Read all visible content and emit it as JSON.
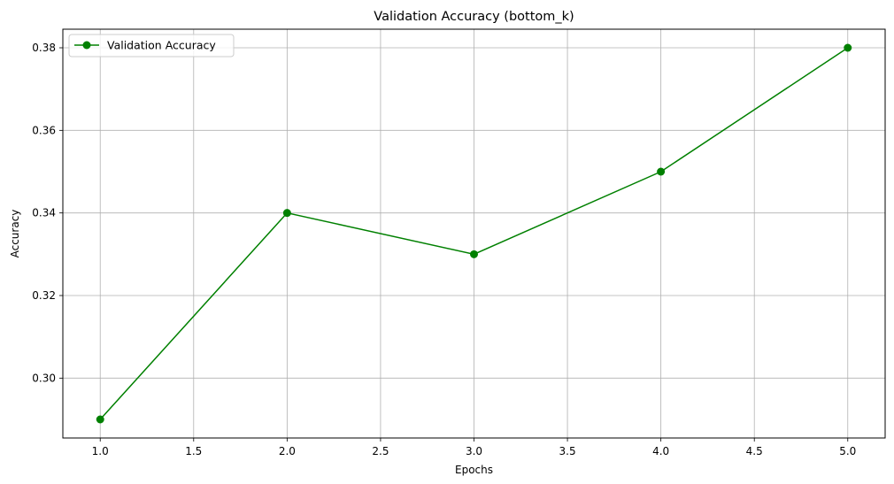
{
  "chart_data": {
    "type": "line",
    "title": "Validation Accuracy (bottom_k)",
    "xlabel": "Epochs",
    "ylabel": "Accuracy",
    "x": [
      1,
      2,
      3,
      4,
      5
    ],
    "series": [
      {
        "name": "Validation Accuracy",
        "values": [
          0.29,
          0.34,
          0.33,
          0.35,
          0.38
        ],
        "color": "#008000",
        "marker": "circle"
      }
    ],
    "xlim": [
      0.8,
      5.2
    ],
    "ylim": [
      0.2855,
      0.3845
    ],
    "xticks": [
      1.0,
      1.5,
      2.0,
      2.5,
      3.0,
      3.5,
      4.0,
      4.5,
      5.0
    ],
    "xtick_labels": [
      "1.0",
      "1.5",
      "2.0",
      "2.5",
      "3.0",
      "3.5",
      "4.0",
      "4.5",
      "5.0"
    ],
    "yticks": [
      0.3,
      0.32,
      0.34,
      0.36,
      0.38
    ],
    "ytick_labels": [
      "0.30",
      "0.32",
      "0.34",
      "0.36",
      "0.38"
    ],
    "grid": true,
    "legend_position": "top-left"
  }
}
